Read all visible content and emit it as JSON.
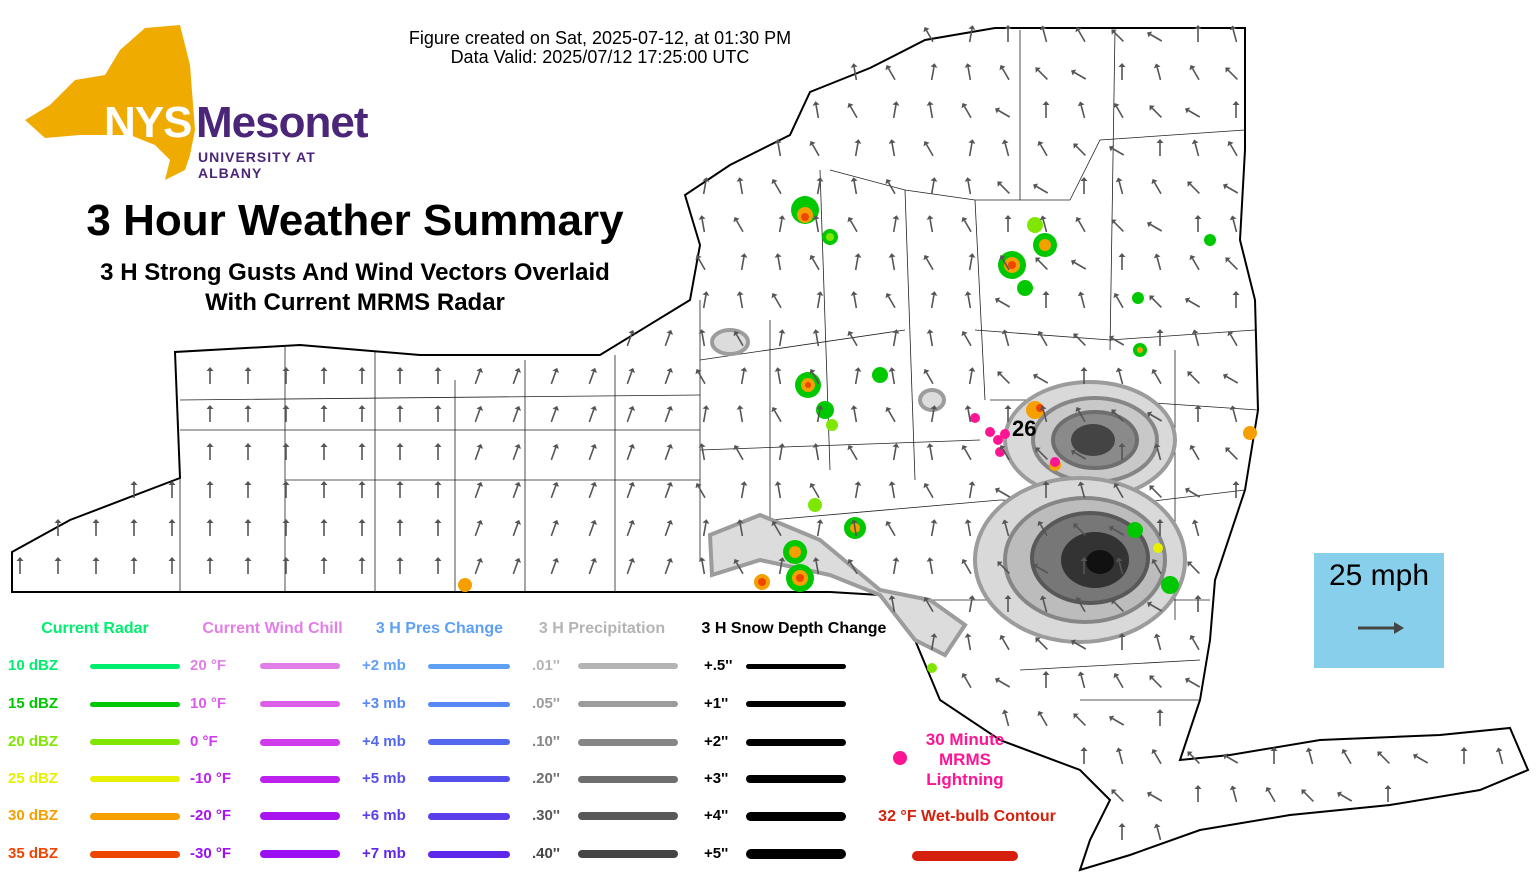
{
  "header": {
    "created": "Figure created on Sat, 2025-07-12, at 01:30 PM",
    "valid": "Data Valid: 2025/07/12 17:25:00 UTC"
  },
  "logo": {
    "nys": "NYS",
    "mesonet": "Mesonet",
    "university": "UNIVERSITY AT ALBANY",
    "state_color": "#f0ab00",
    "brand_color": "#4b2678"
  },
  "title": "3 Hour Weather Summary",
  "subtitle_line1": "3 H Strong Gusts And Wind Vectors Overlaid",
  "subtitle_line2": "With Current MRMS Radar",
  "station_gust_value": "26",
  "scale": {
    "label": "25 mph",
    "bg_color": "#87cfea"
  },
  "legend": {
    "radar": {
      "heading": "Current Radar",
      "items": [
        {
          "label": "10 dBZ",
          "color": "#00ee6e"
        },
        {
          "label": "15 dBZ",
          "color": "#00c800"
        },
        {
          "label": "20 dBZ",
          "color": "#7fe600"
        },
        {
          "label": "25 dBZ",
          "color": "#e6f000"
        },
        {
          "label": "30 dBZ",
          "color": "#f5a000"
        },
        {
          "label": "35 dBZ",
          "color": "#ee4500"
        }
      ]
    },
    "wind_chill": {
      "heading": "Current Wind Chill",
      "items": [
        {
          "label": "20 °F",
          "color": "#e27ee8"
        },
        {
          "label": "10 °F",
          "color": "#dc5ee8"
        },
        {
          "label": "0 °F",
          "color": "#cf3cec"
        },
        {
          "label": "-10 °F",
          "color": "#bb22ee"
        },
        {
          "label": "-20 °F",
          "color": "#a714f0"
        },
        {
          "label": "-30 °F",
          "color": "#9a10f2"
        }
      ]
    },
    "pressure": {
      "heading": "3 H Pres Change",
      "items": [
        {
          "label": "+2 mb",
          "color": "#5ea0f4"
        },
        {
          "label": "+3 mb",
          "color": "#5888f4"
        },
        {
          "label": "+4 mb",
          "color": "#5268ee"
        },
        {
          "label": "+5 mb",
          "color": "#5550ec"
        },
        {
          "label": "+6 mb",
          "color": "#5a3eea"
        },
        {
          "label": "+7 mb",
          "color": "#5e26e8"
        }
      ]
    },
    "precip": {
      "heading": "3 H Precipitation",
      "items": [
        {
          "label": ".01''",
          "color": "#b4b4b4"
        },
        {
          "label": ".05''",
          "color": "#9c9c9c"
        },
        {
          "label": ".10''",
          "color": "#868686"
        },
        {
          "label": ".20''",
          "color": "#6e6e6e"
        },
        {
          "label": ".30''",
          "color": "#585858"
        },
        {
          "label": ".40''",
          "color": "#444444"
        }
      ]
    },
    "snow": {
      "heading": "3 H Snow Depth Change",
      "items": [
        {
          "label": "+.5''",
          "color": "#000000"
        },
        {
          "label": "+1''",
          "color": "#000000"
        },
        {
          "label": "+2''",
          "color": "#000000"
        },
        {
          "label": "+3''",
          "color": "#000000"
        },
        {
          "label": "+4''",
          "color": "#000000"
        },
        {
          "label": "+5''",
          "color": "#000000"
        }
      ]
    },
    "lightning": {
      "line1": "30 Minute",
      "line2": "MRMS",
      "line3": "Lightning",
      "color": "#ff1493"
    },
    "wetbulb": {
      "label": "32 °F Wet-bulb Contour",
      "color": "#d4200c"
    }
  }
}
